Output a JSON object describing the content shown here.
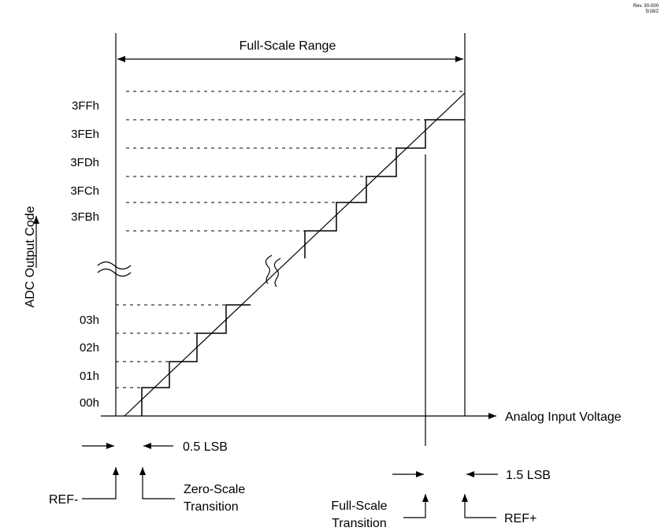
{
  "revision": {
    "line1": "Rev. 30-000",
    "line2": "5/16/2"
  },
  "range": {
    "full_scale": "Full-Scale Range"
  },
  "axes": {
    "y_label": "ADC Output Code",
    "x_label": "Analog Input Voltage"
  },
  "codes_high": [
    "3FFh",
    "3FEh",
    "3FDh",
    "3FCh",
    "3FBh"
  ],
  "codes_low": [
    "03h",
    "02h",
    "01h",
    "00h"
  ],
  "annotations": {
    "half_lsb": "0.5 LSB",
    "one_half_lsb": "1.5 LSB",
    "ref_minus": "REF-",
    "ref_plus": "REF+",
    "zero_scale_l1": "Zero-Scale",
    "zero_scale_l2": "Transition",
    "full_scale_l1": "Full-Scale",
    "full_scale_l2": "Transition"
  }
}
